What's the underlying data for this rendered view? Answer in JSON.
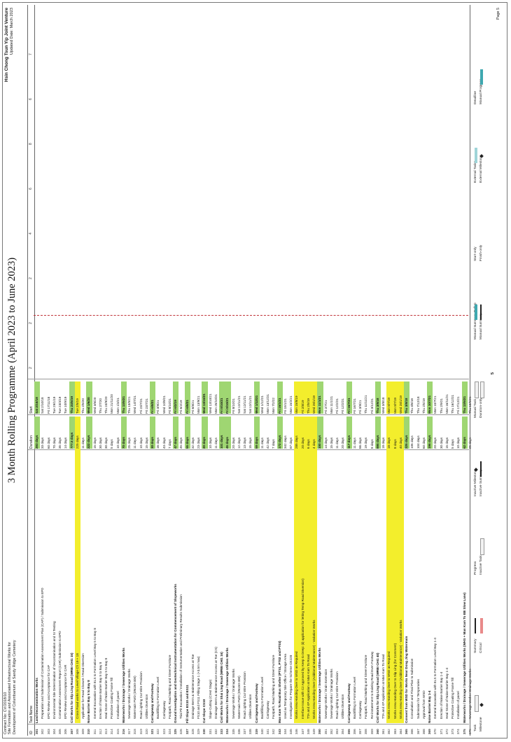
{
  "header": {
    "contract_lines": [
      "Contract No: CV/2018/10",
      "Site Formation and Associated Infrastructural Works for",
      "Development of Columbarium at Sandy Ridge Cemetery"
    ],
    "title": "3 Month Rolling Programme (April 2023 to June 2023)",
    "company": "Hsin Chong Tsun Yip Joint Venture",
    "updated": "Updated Date: March 2023"
  },
  "columns": {
    "id": "ID",
    "name": "Task Name",
    "duration": "Duration",
    "start": "Start"
  },
  "timeline_ticks": [
    "2",
    "2",
    "2",
    "4",
    "6",
    "8",
    "6",
    "7"
  ],
  "tasks": [
    {
      "id": "301",
      "name": "Land Decontamination Works",
      "dur": "293 days",
      "start": "Sat 2/10/18",
      "summary": true
    },
    {
      "id": "302",
      "name": "Preparation and Submission of Contamination Assessment Plan (CAP) / Submission to EPD",
      "dur": "33 days",
      "start": "Sat 2/10/18"
    },
    {
      "id": "303",
      "name": "EPD Review and Acceptance for CAP",
      "dur": "60 days",
      "start": "Fri 17/11/18"
    },
    {
      "id": "304",
      "name": "Environmental Site Determination of Decontamination and SI Testing",
      "dur": "70 days",
      "start": "Tue 29/1/19"
    },
    {
      "id": "305",
      "name": "Contamination Assessment Report (CAR) Submission to EPD",
      "dur": "35 days",
      "start": "Tue 23/4/19"
    },
    {
      "id": "306",
      "name": "EPD Review and Acceptance for CAR",
      "dur": "14 days",
      "start": "Tue 10/9/19"
    },
    {
      "id": "307",
      "name": "Civil Works for Slip Ling Road (WRBI CHI1 15)",
      "dur": "777.5 days",
      "start": "Thu 23/5/19",
      "summary": true
    },
    {
      "id": "308",
      "name": "Cross Road works to Level Village Ch 19 + 18",
      "dur": "225 days",
      "start": "Tue 2/5/19",
      "hl": true
    },
    {
      "id": "309",
      "name": "Application for Road Closure / Road Diversion",
      "dur": "11 days",
      "start": "Thu 2/5/20"
    },
    {
      "id": "310",
      "name": "Noise Barrier Bay 5 to Bay 8",
      "dur": "222 days",
      "start": "Wed 1/6/20",
      "summary": true
    },
    {
      "id": "311",
      "name": "General Excavation with ELS to Formation Level Bay 5 to Bay 8",
      "dur": "15 days",
      "start": "Wed 3/6/20"
    },
    {
      "id": "312",
      "name": "Erection of Noise Barrier Bay 5 to Bay 8",
      "dur": "30 days",
      "start": "Thu 2/7/20"
    },
    {
      "id": "313",
      "name": "Heal Stone of Noise Barrier Bay 5 to Bay 8",
      "dur": "30 days",
      "start": "Thu 24/9/20"
    },
    {
      "id": "314",
      "name": "Protective Coating Frame Till",
      "dur": "5 days",
      "start": "Mon 21/11/20"
    },
    {
      "id": "315",
      "name": "Installation of panel",
      "dur": "10 days",
      "start": "Mon 1/3/21"
    },
    {
      "id": "316",
      "name": "Waterworks / Drainage / Sewerage Utilities Works",
      "dur": "70 days",
      "start": "Thu 13/5/21",
      "summary": true
    },
    {
      "id": "317",
      "name": "Sewerage Works / Drainage Works",
      "dur": "25 days",
      "start": "Thu 13/5/21"
    },
    {
      "id": "318",
      "name": "Watermain FWD (DN150-300)",
      "dur": "11 days",
      "start": "Wed 14/7/21"
    },
    {
      "id": "319",
      "name": "Road Lighting Cut Wire Provision",
      "dur": "10 days",
      "start": "Fri 23/7/21"
    },
    {
      "id": "320",
      "name": "Utilities Diversion",
      "dur": "15 days",
      "start": "Fri 23/7/21"
    },
    {
      "id": "321",
      "name": "Carriageway and Footway",
      "dur": "30 days",
      "start": "Fri 6/8/21",
      "summary": true
    },
    {
      "id": "322",
      "name": "Backfilling to Formation Level",
      "dur": "16 days",
      "start": "Fri 3/9/21"
    },
    {
      "id": "323",
      "name": "Carriageway",
      "dur": "43 days",
      "start": "Wed 10/9/21"
    },
    {
      "id": "324",
      "name": "Footpath, Road Marking and Street Furniture",
      "dur": "7 days",
      "start": "Fri 8/10/21"
    },
    {
      "id": "325",
      "name": "Ground Investigation and Geotechnical Instrumentation for Commencement of Slopeworks",
      "dur": "47 days",
      "start": "Fri 6/2/19",
      "summary": true
    },
    {
      "id": "326",
      "name": "Trial Pit Excavation / Installation of Instrumentation and Preliminary Results Submission",
      "dur": "45 days",
      "start": "Fri 6/2/19"
    },
    {
      "id": "327",
      "name": "Fill Slope ES10 and ES11",
      "dur": "55 days",
      "start": "Fri 6/8/21",
      "summary": true
    },
    {
      "id": "328",
      "name": "Drainage Berm & Maintenance Access at Toe",
      "dur": "32 days",
      "start": "Fri 6/8/21"
    },
    {
      "id": "329",
      "name": "FS10 and FS11 Filling Stage 1 (+3.5m max)",
      "dur": "23 days",
      "start": "Mon 13/9/21"
    },
    {
      "id": "330",
      "name": "Cut Slope CS10",
      "dur": "20 days",
      "start": "Wed 13/10/21",
      "summary": true
    },
    {
      "id": "331",
      "name": "Slope Cutting (Crest Stage)",
      "dur": "10 days",
      "start": "Wed 13/10/21"
    },
    {
      "id": "332",
      "name": "Drainage Berm & Maintenance Access at Toe (CS)",
      "dur": "11 days",
      "start": "Mon 25/10/21"
    },
    {
      "id": "333",
      "name": "Civil Works for Shai Ling Road (WRBI CHI1 16)",
      "dur": "101 days",
      "start": "Fri 8/10/21",
      "summary": true
    },
    {
      "id": "334",
      "name": "Waterworks / Drainage / Sewerage Utilities Works",
      "dur": "45 days",
      "start": "Fri 8/10/21",
      "summary": true
    },
    {
      "id": "335",
      "name": "Sewerage Works / Drainage Works",
      "dur": "20 days",
      "start": "Fri 8/10/21"
    },
    {
      "id": "336",
      "name": "Watermain FWD (DN150-300)",
      "dur": "12 days",
      "start": "Sat 12/11/21"
    },
    {
      "id": "337",
      "name": "Road Lighting Cut Wire Provision",
      "dur": "13 days",
      "start": "Sat 12/11/21"
    },
    {
      "id": "338",
      "name": "Utilities Diversion",
      "dur": "15 days",
      "start": "Sat 12/11/21"
    },
    {
      "id": "339",
      "name": "Carriageway and Footway",
      "dur": "59 days",
      "start": "Wed 1/12/21",
      "summary": true
    },
    {
      "id": "340",
      "name": "Backfilling to Formation Level",
      "dur": "11 days",
      "start": "Wed 1/12/21"
    },
    {
      "id": "341",
      "name": "Carriageway",
      "dur": "42 days",
      "start": "Mon 13/12/21"
    },
    {
      "id": "342",
      "name": "Footpath, Road Marking and Street Furniture",
      "dur": "7 days",
      "start": "Mon 7/2/22"
    },
    {
      "id": "343",
      "name": "Man Kam To Road Bus Shelter (PTS1, PT02 and PT03)",
      "dur": "172 days",
      "start": "Fri 15/1/21",
      "summary": true
    },
    {
      "id": "344",
      "name": "Used as Temporary Site Office / Storage Area",
      "dur": "342 days",
      "start": "Fri 15/1/21"
    },
    {
      "id": "345",
      "name": "Investigation for Prepare the Scheme CE228",
      "dur": "87 days",
      "start": "Mon 15/2/21"
    },
    {
      "id": "346",
      "name": "Works Area Handing Over to WSD as Required",
      "dur": "285 days",
      "start": "Mon 15/8/19",
      "hl": true
    },
    {
      "id": "347",
      "name": "Interface Issue with C2 Approved by Keep to Deep: (ii) application for letting Temp Road Diversion)",
      "dur": "20 days",
      "start": "Fri 2/8/19",
      "hl": true
    },
    {
      "id": "348",
      "name": "TTA and XP Application at Man Kam To Road",
      "dur": "6 days",
      "start": "Thu 2/5/19",
      "hl": true
    },
    {
      "id": "349",
      "name": "Works Area Handing Over (Additional Maintenance) - Variation Works",
      "dur": "4 days",
      "start": "Wed 28/1/19",
      "hl": true
    },
    {
      "id": "350",
      "name": "Waterworks / Drainage / Sewerage Utilities Works",
      "dur": "100 days",
      "start": "Mon 11/1/21",
      "summary": true
    },
    {
      "id": "351",
      "name": "Sewerage Works / Drain Extension",
      "dur": "14 days",
      "start": "Fri 2/7/21"
    },
    {
      "id": "352",
      "name": "Sewerage Works / Drainage Works",
      "dur": "15 days",
      "start": "Mon 11/1/21"
    },
    {
      "id": "353",
      "name": "Road Lighting Cut Wire Provision",
      "dur": "11 days",
      "start": "Fri 12/2/21"
    },
    {
      "id": "354",
      "name": "Utilities Diversion",
      "dur": "20 days",
      "start": "Fri 12/2/21"
    },
    {
      "id": "355",
      "name": "Carriageway and Footway",
      "dur": "117 days",
      "start": "Fri 16/7/21",
      "summary": true
    },
    {
      "id": "356",
      "name": "Backfilling to Formation Level",
      "dur": "11 days",
      "start": "Fri 16/7/21"
    },
    {
      "id": "357",
      "name": "Carriageway",
      "dur": "66 days",
      "start": "Fri 3/9/21"
    },
    {
      "id": "358",
      "name": "Footpath, Road Marking and Street Furniture",
      "dur": "19 days",
      "start": "Thu 11/11/21"
    },
    {
      "id": "359",
      "name": "Re-instatement to Existing Road Even Footway",
      "dur": "8 days",
      "start": "Fri 3/12/21"
    },
    {
      "id": "360",
      "name": "Civil Works for Slip Ling Road (WRBI CHI1 40)",
      "dur": "895 days",
      "start": "Thu 3/8/18",
      "summary": true
    },
    {
      "id": "361",
      "name": "TTA and XP Application at Man Kam To Road",
      "dur": "18 days",
      "start": "Wed 3/8/18"
    },
    {
      "id": "362",
      "name": "Works Area Handing Over to WSD as Required",
      "dur": "18 days",
      "start": "Mon 8/7/19",
      "hl": true
    },
    {
      "id": "363",
      "name": "Works Area Handing Over to Slip Ling (for Comment)",
      "dur": "8 days",
      "start": "Mon 8/7/19",
      "hl": true
    },
    {
      "id": "364",
      "name": "Works Area Handing Over (Additional Maintenance) - Variation Works",
      "dur": "40 days",
      "start": "Wed 28/1/19",
      "hl": true
    },
    {
      "id": "365",
      "name": "Consent from WSD for Works Near Dong Jing Watermain",
      "dur": "225 days",
      "start": "Thu 3/8/18",
      "summary": true
    },
    {
      "id": "366",
      "name": "Consultation and Final Plan to Submission",
      "dur": "106 days",
      "start": "Thu 3/8/18"
    },
    {
      "id": "367",
      "name": "Submission for Temporaries",
      "dur": "104 days",
      "start": "Thu 7/12/18"
    },
    {
      "id": "368",
      "name": "Approval from WSD",
      "dur": "60 days",
      "start": "Thu 2/5/19"
    },
    {
      "id": "369",
      "name": "Noise Barrier Bay 1-4",
      "dur": "196 days",
      "start": "Mon 10/7/21",
      "summary": true
    },
    {
      "id": "370",
      "name": "General Excavation with ELS to Formation Level Bay 1-4",
      "dur": "20 days",
      "start": "Mon 10/7/21"
    },
    {
      "id": "371",
      "name": "Erection of Noise Barrier Bay 1-4",
      "dur": "30 days",
      "start": "Thu 2/9/21"
    },
    {
      "id": "372",
      "name": "Heal Stone of Noise Barrier Bay 1-4",
      "dur": "15 days",
      "start": "Mon 16/11/21"
    },
    {
      "id": "373",
      "name": "Protective Coating Frame Till",
      "dur": "5 days",
      "start": "Thu 16/12/21"
    },
    {
      "id": "374",
      "name": "Installation of panel",
      "dur": "10 days",
      "start": "Fri 17/12/21"
    },
    {
      "id": "375",
      "name": "Waterworks / Drainage / Sewerage Utilities Works (WHS + Man Kam To EB Slow Lane)",
      "dur": "62 days",
      "start": "Thu 13/5/21",
      "summary": true
    },
    {
      "id": "376",
      "name": "Sewerage Works / Drainage Works",
      "dur": "25 days",
      "start": "Thu 13/5/21"
    }
  ],
  "legend": {
    "col1": [
      {
        "label": "Task",
        "swatch": "task"
      },
      {
        "label": "Milestone",
        "swatch": "milestone"
      }
    ],
    "col2": [
      {
        "label": "Summary",
        "swatch": "summary"
      },
      {
        "label": "Critical",
        "swatch": "critical"
      }
    ],
    "col3": [
      {
        "label": "Progress",
        "swatch": "none"
      },
      {
        "label": "Inactive Task",
        "swatch": "task"
      }
    ],
    "col4": [
      {
        "label": "Inactive Milestone",
        "swatch": "milestone"
      },
      {
        "label": "Inactive Summary",
        "swatch": "summary"
      }
    ],
    "col5": [
      {
        "label": "Manual Task",
        "swatch": "task"
      },
      {
        "label": "Duration-only",
        "swatch": "task"
      }
    ],
    "col6": [
      {
        "label": "Manual Summary Rollup",
        "swatch": "teal"
      },
      {
        "label": "Manual Summary",
        "swatch": "summary"
      }
    ],
    "col7": [
      {
        "label": "Start-only",
        "swatch": "none"
      },
      {
        "label": "Finish-only",
        "swatch": "none"
      }
    ],
    "col8": [
      {
        "label": "External Tasks",
        "swatch": "lightteal"
      },
      {
        "label": "External Milestone",
        "swatch": "milestone"
      }
    ],
    "col9": [
      {
        "label": "Deadline",
        "swatch": "none"
      },
      {
        "label": "Manual Progress",
        "swatch": "teal"
      }
    ]
  },
  "footer": {
    "page": "Page 5",
    "center": "5"
  },
  "colors": {
    "highlight": "#f3ee2c",
    "duration_green": "#9fd672",
    "status_line": "#c0343a"
  }
}
